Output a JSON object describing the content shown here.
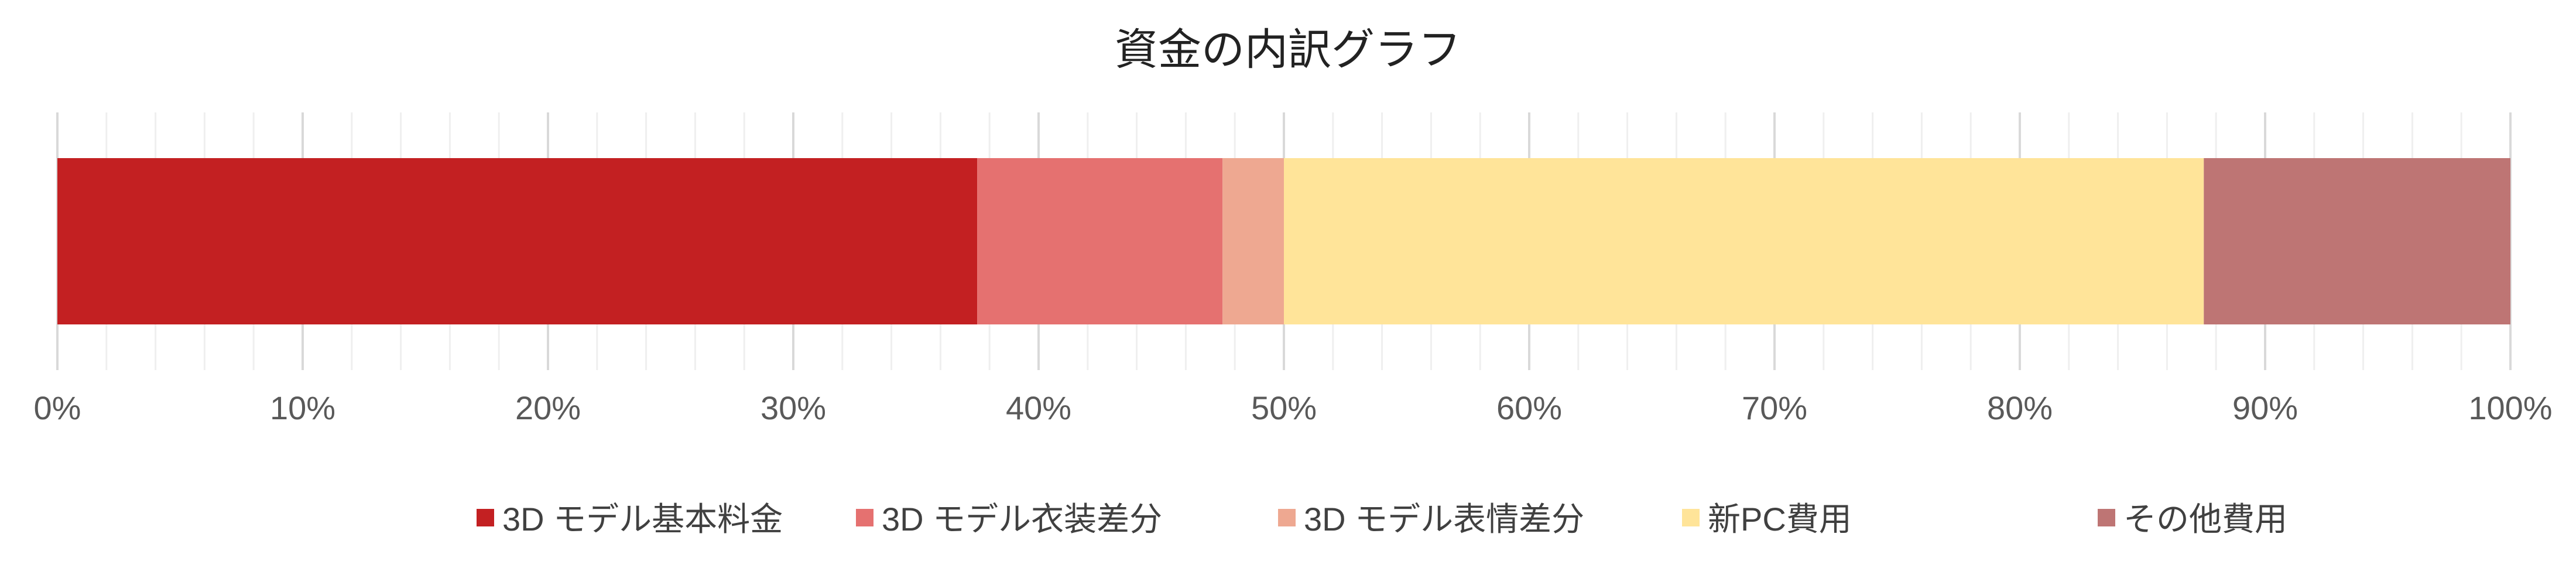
{
  "chart_data": {
    "type": "bar",
    "orientation": "horizontal-stacked-100",
    "title": "資金の内訳グラフ",
    "xlabel": "",
    "ylabel": "",
    "xlim": [
      0,
      100
    ],
    "grid": true,
    "legend_position": "bottom",
    "tick_labels": [
      "0%",
      "10%",
      "20%",
      "30%",
      "40%",
      "50%",
      "60%",
      "70%",
      "80%",
      "90%",
      "100%"
    ],
    "series": [
      {
        "name": "3D モデル基本料金",
        "value": 37.5,
        "color": "#C32022"
      },
      {
        "name": "3D モデル衣装差分",
        "value": 10,
        "color": "#E57170"
      },
      {
        "name": "3D モデル表情差分",
        "value": 2.5,
        "color": "#EEA891"
      },
      {
        "name": "新PC費用",
        "value": 37.5,
        "color": "#FFE499"
      },
      {
        "name": "その他費用",
        "value": 12.5,
        "color": "#BE7574"
      }
    ]
  }
}
